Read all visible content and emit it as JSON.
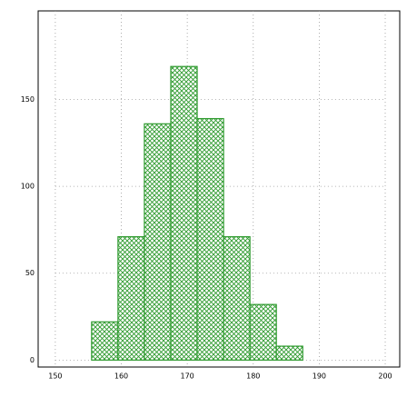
{
  "chart_data": {
    "type": "histogram",
    "bins": [
      155.5,
      159.5,
      163.5,
      167.5,
      171.5,
      175.5,
      179.5,
      183.5,
      187.5
    ],
    "values": [
      22,
      71,
      136,
      169,
      139,
      71,
      32,
      8
    ],
    "color": "#2e9a2e",
    "xlim": [
      147.4,
      202.2
    ],
    "xticks": [
      150,
      160,
      170,
      180,
      190,
      200
    ],
    "ylim": [
      -4,
      201
    ],
    "yticks": [
      0,
      50,
      100,
      150
    ],
    "grid": true
  }
}
